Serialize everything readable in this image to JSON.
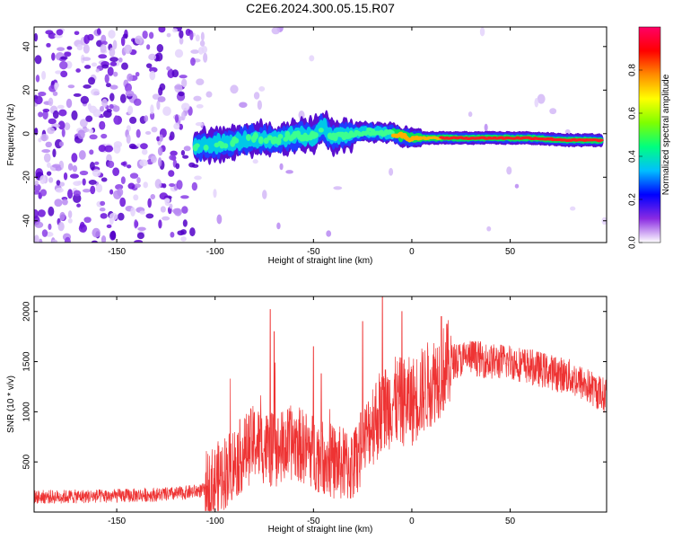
{
  "page": {
    "title": "C2E6.2024.300.05.15.R07"
  },
  "chart_data": [
    {
      "type": "heatmap",
      "xlabel": "Height of straight line (km)",
      "ylabel": "Frequency (Hz)",
      "xlim": [
        -192,
        99
      ],
      "ylim": [
        -50,
        49
      ],
      "xticks": [
        -150,
        -100,
        -50,
        0,
        50
      ],
      "yticks": [
        -40,
        -20,
        0,
        20,
        40
      ],
      "colorbar": {
        "label": "Normalized spectral amplitude",
        "range": [
          0,
          1
        ],
        "ticks": [
          "0.0",
          "0.2",
          "0.4",
          "0.6",
          "0.8"
        ],
        "colors": [
          "#ffffff",
          "#8a2be2",
          "#0000ff",
          "#00bfff",
          "#00ff7f",
          "#7fff00",
          "#ffff00",
          "#ff8c00",
          "#ff0000",
          "#ff0066"
        ]
      },
      "ridge": {
        "x": [
          -110,
          -100,
          -90,
          -80,
          -70,
          -60,
          -50,
          -45,
          -40,
          -30,
          -20,
          -10,
          0,
          10,
          20,
          40,
          60,
          80,
          95
        ],
        "y": [
          -6,
          -5,
          -4,
          -2,
          -3,
          -1,
          -1,
          3,
          -2,
          0,
          1,
          0,
          -2,
          -2,
          -2,
          -2,
          -2,
          -3,
          -3
        ]
      }
    },
    {
      "type": "line",
      "xlabel": "Height of straight line (km)",
      "ylabel": "SNR (10 * v/v)",
      "xlim": [
        -192,
        99
      ],
      "ylim": [
        0,
        2150
      ],
      "xticks": [
        -150,
        -100,
        -50,
        0,
        50
      ],
      "yticks": [
        500,
        1000,
        1500,
        2000
      ],
      "series": [
        {
          "color": "#ee3333",
          "trend_x": [
            -192,
            -150,
            -120,
            -105,
            -100,
            -90,
            -80,
            -70,
            -60,
            -50,
            -40,
            -30,
            -20,
            -10,
            0,
            10,
            20,
            30,
            40,
            50,
            60,
            70,
            80,
            90,
            99
          ],
          "trend_y": [
            150,
            160,
            180,
            220,
            300,
            500,
            700,
            600,
            700,
            600,
            500,
            450,
            900,
            1100,
            1100,
            1300,
            1500,
            1550,
            1500,
            1500,
            1450,
            1400,
            1350,
            1250,
            1150
          ],
          "spikes": [
            {
              "x": -72,
              "y": 2020
            },
            {
              "x": -70,
              "y": 1800
            },
            {
              "x": -50,
              "y": 1650
            },
            {
              "x": -46,
              "y": 1380
            },
            {
              "x": -25,
              "y": 1900
            },
            {
              "x": -15,
              "y": 2150
            },
            {
              "x": -5,
              "y": 2000
            },
            {
              "x": 15,
              "y": 1950
            }
          ]
        }
      ]
    }
  ]
}
